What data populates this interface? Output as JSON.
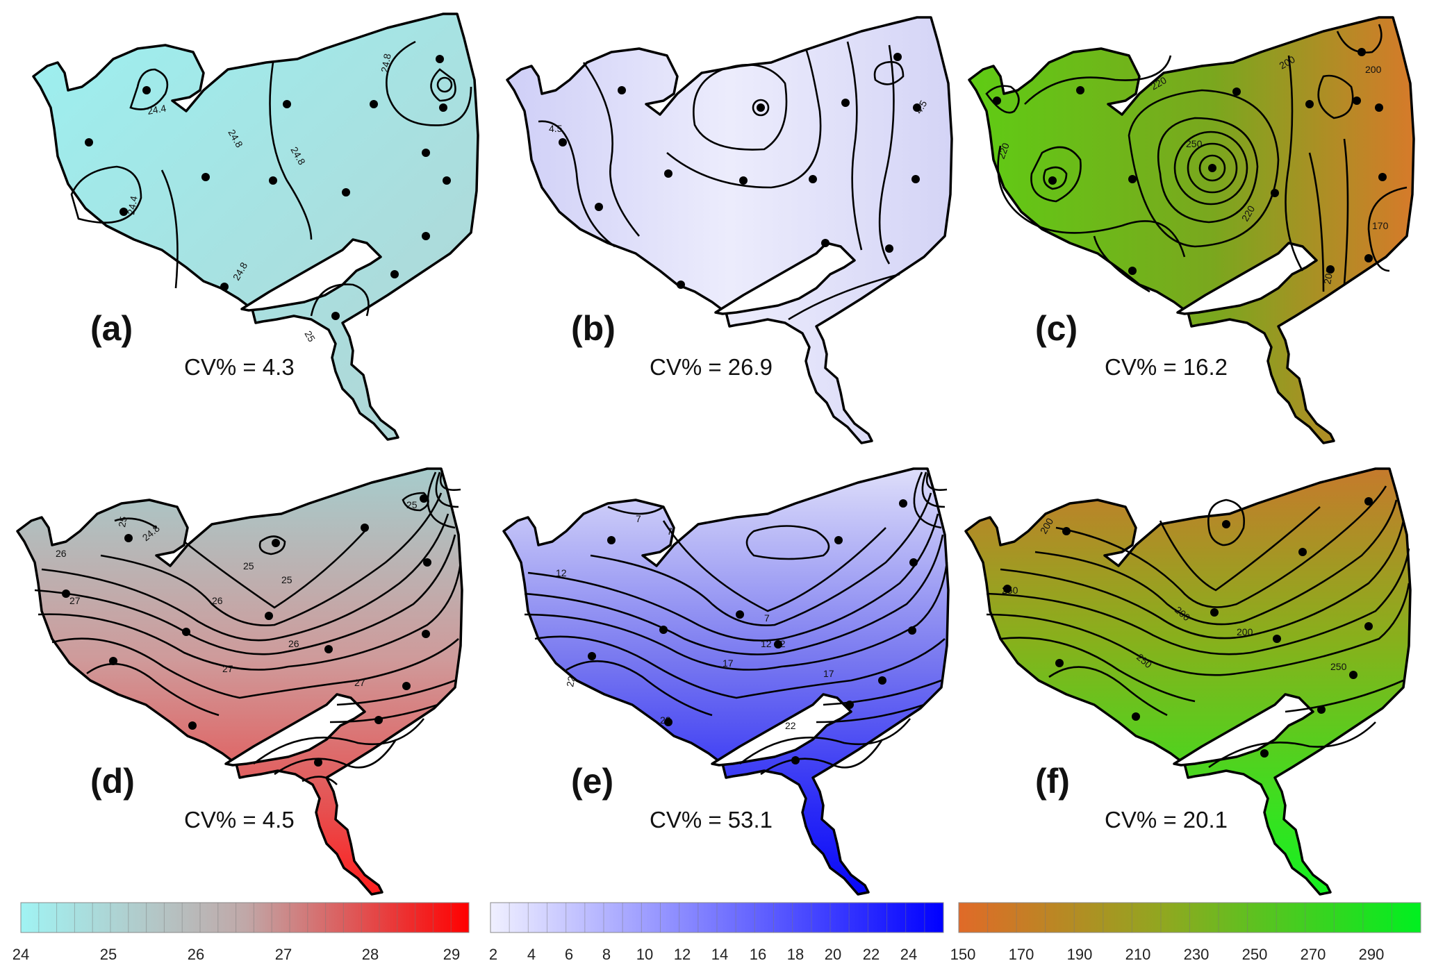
{
  "panels": [
    {
      "id": "a",
      "label": "(a)",
      "cv": "CV% = 4.3",
      "fill": "#a9e0df",
      "contour_labels": [
        "24.4",
        "24.8",
        "24.8",
        "24.8",
        "24.8",
        "24.4",
        "25"
      ]
    },
    {
      "id": "b",
      "label": "(b)",
      "cv": "CV% = 26.9",
      "fill": "#e4e4fa",
      "contour_labels": [
        "4.5",
        "4.5"
      ]
    },
    {
      "id": "c",
      "label": "(c)",
      "cv": "CV% = 16.2",
      "fill": "#6fae22",
      "contour_labels": [
        "220",
        "250",
        "200",
        "200",
        "220",
        "220",
        "170",
        "200"
      ]
    },
    {
      "id": "d",
      "label": "(d)",
      "cv": "CV% = 4.5",
      "fill": "#cf8f8f",
      "contour_labels": [
        "25",
        "24.8",
        "25",
        "26",
        "25",
        "25",
        "26",
        "27",
        "26",
        "27",
        "27"
      ]
    },
    {
      "id": "e",
      "label": "(e)",
      "cv": "CV% = 53.1",
      "fill": "#7070ee",
      "contour_labels": [
        "7",
        "7",
        "12",
        "7",
        "12",
        "12",
        "17",
        "22",
        "17",
        "22",
        "22"
      ]
    },
    {
      "id": "f",
      "label": "(f)",
      "cv": "CV% = 20.1",
      "fill": "#68c41a",
      "contour_labels": [
        "200",
        "250",
        "200",
        "200",
        "250",
        "250"
      ]
    }
  ],
  "colorbars": [
    {
      "id": "temperature",
      "from": "#a0f3f3",
      "mid": "#bdb0b0",
      "to": "#ff0000",
      "ticks": [
        "24",
        "25",
        "26",
        "27",
        "28",
        "29"
      ]
    },
    {
      "id": "blue",
      "from": "#ececff",
      "to": "#0000ff",
      "ticks": [
        "2",
        "4",
        "6",
        "8",
        "10",
        "12",
        "14",
        "16",
        "18",
        "20",
        "22",
        "24"
      ]
    },
    {
      "id": "orange-green",
      "from": "#e06a28",
      "mid": "#99a020",
      "to": "#00ee22",
      "ticks": [
        "150",
        "170",
        "190",
        "210",
        "230",
        "250",
        "270",
        "290"
      ]
    }
  ]
}
